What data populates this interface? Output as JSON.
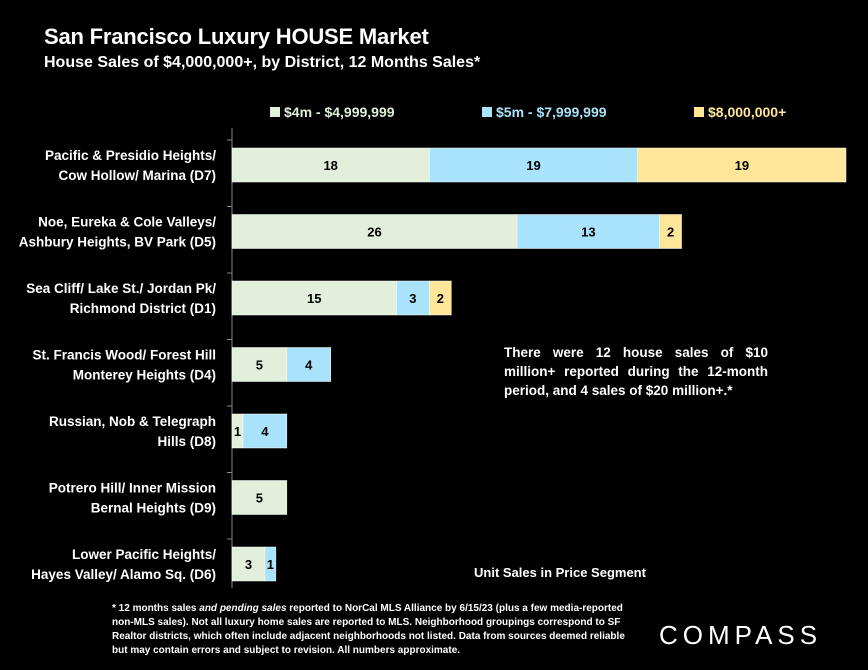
{
  "chart_data": {
    "type": "bar",
    "orientation": "horizontal",
    "stacked": true,
    "title": "San Francisco Luxury HOUSE Market",
    "subtitle": "House Sales of $4,000,000+, by District, 12 Months Sales*",
    "categories": [
      [
        "Pacific & Presidio Heights/",
        "Cow Hollow/ Marina (D7)"
      ],
      [
        "Noe, Eureka & Cole Valleys/",
        "Ashbury Heights, BV Park (D5)"
      ],
      [
        "Sea Cliff/ Lake St./ Jordan Pk/",
        "Richmond District (D1)"
      ],
      [
        "St. Francis Wood/ Forest Hill",
        "Monterey Heights (D4)"
      ],
      [
        "Russian, Nob & Telegraph",
        "Hills (D8)"
      ],
      [
        "Potrero Hill/ Inner Mission",
        "Bernal Heights (D9)"
      ],
      [
        "Lower Pacific Heights/",
        "Hayes Valley/ Alamo Sq. (D6)"
      ]
    ],
    "series": [
      {
        "name": "$4m - $4,999,999",
        "color": "#e2efda",
        "values": [
          18,
          26,
          15,
          5,
          1,
          5,
          3
        ]
      },
      {
        "name": "$5m - $7,999,999",
        "color": "#a9e2fb",
        "values": [
          19,
          13,
          3,
          4,
          4,
          0,
          1
        ]
      },
      {
        "name": "$8,000,000+",
        "color": "#ffe699",
        "values": [
          19,
          2,
          2,
          0,
          0,
          0,
          0
        ]
      }
    ],
    "xlabel": "Unit Sales in Price Segment",
    "xlim": [
      0,
      56
    ],
    "grid": false,
    "legend_position": "top",
    "annotation": "There were 12 house sales of $10 million+ reported during the 12-month period, and 4 sales of $20 million+.*"
  },
  "footnote_parts": {
    "a": "* 12 months sales ",
    "b": "and pending sales",
    "c": " reported to NorCal MLS Alliance by 6/15/23 (plus a few media-reported non-MLS sales). Not all luxury home sales are reported to MLS. Neighborhood groupings correspond to SF Realtor districts, which often include adjacent neighborhoods not listed. Data from sources deemed reliable but may contain errors and subject to revision. All numbers approximate."
  },
  "brand": "COMPASS",
  "legend_label_colors": [
    "#e2efda",
    "#a9e2fb",
    "#ffe699"
  ]
}
